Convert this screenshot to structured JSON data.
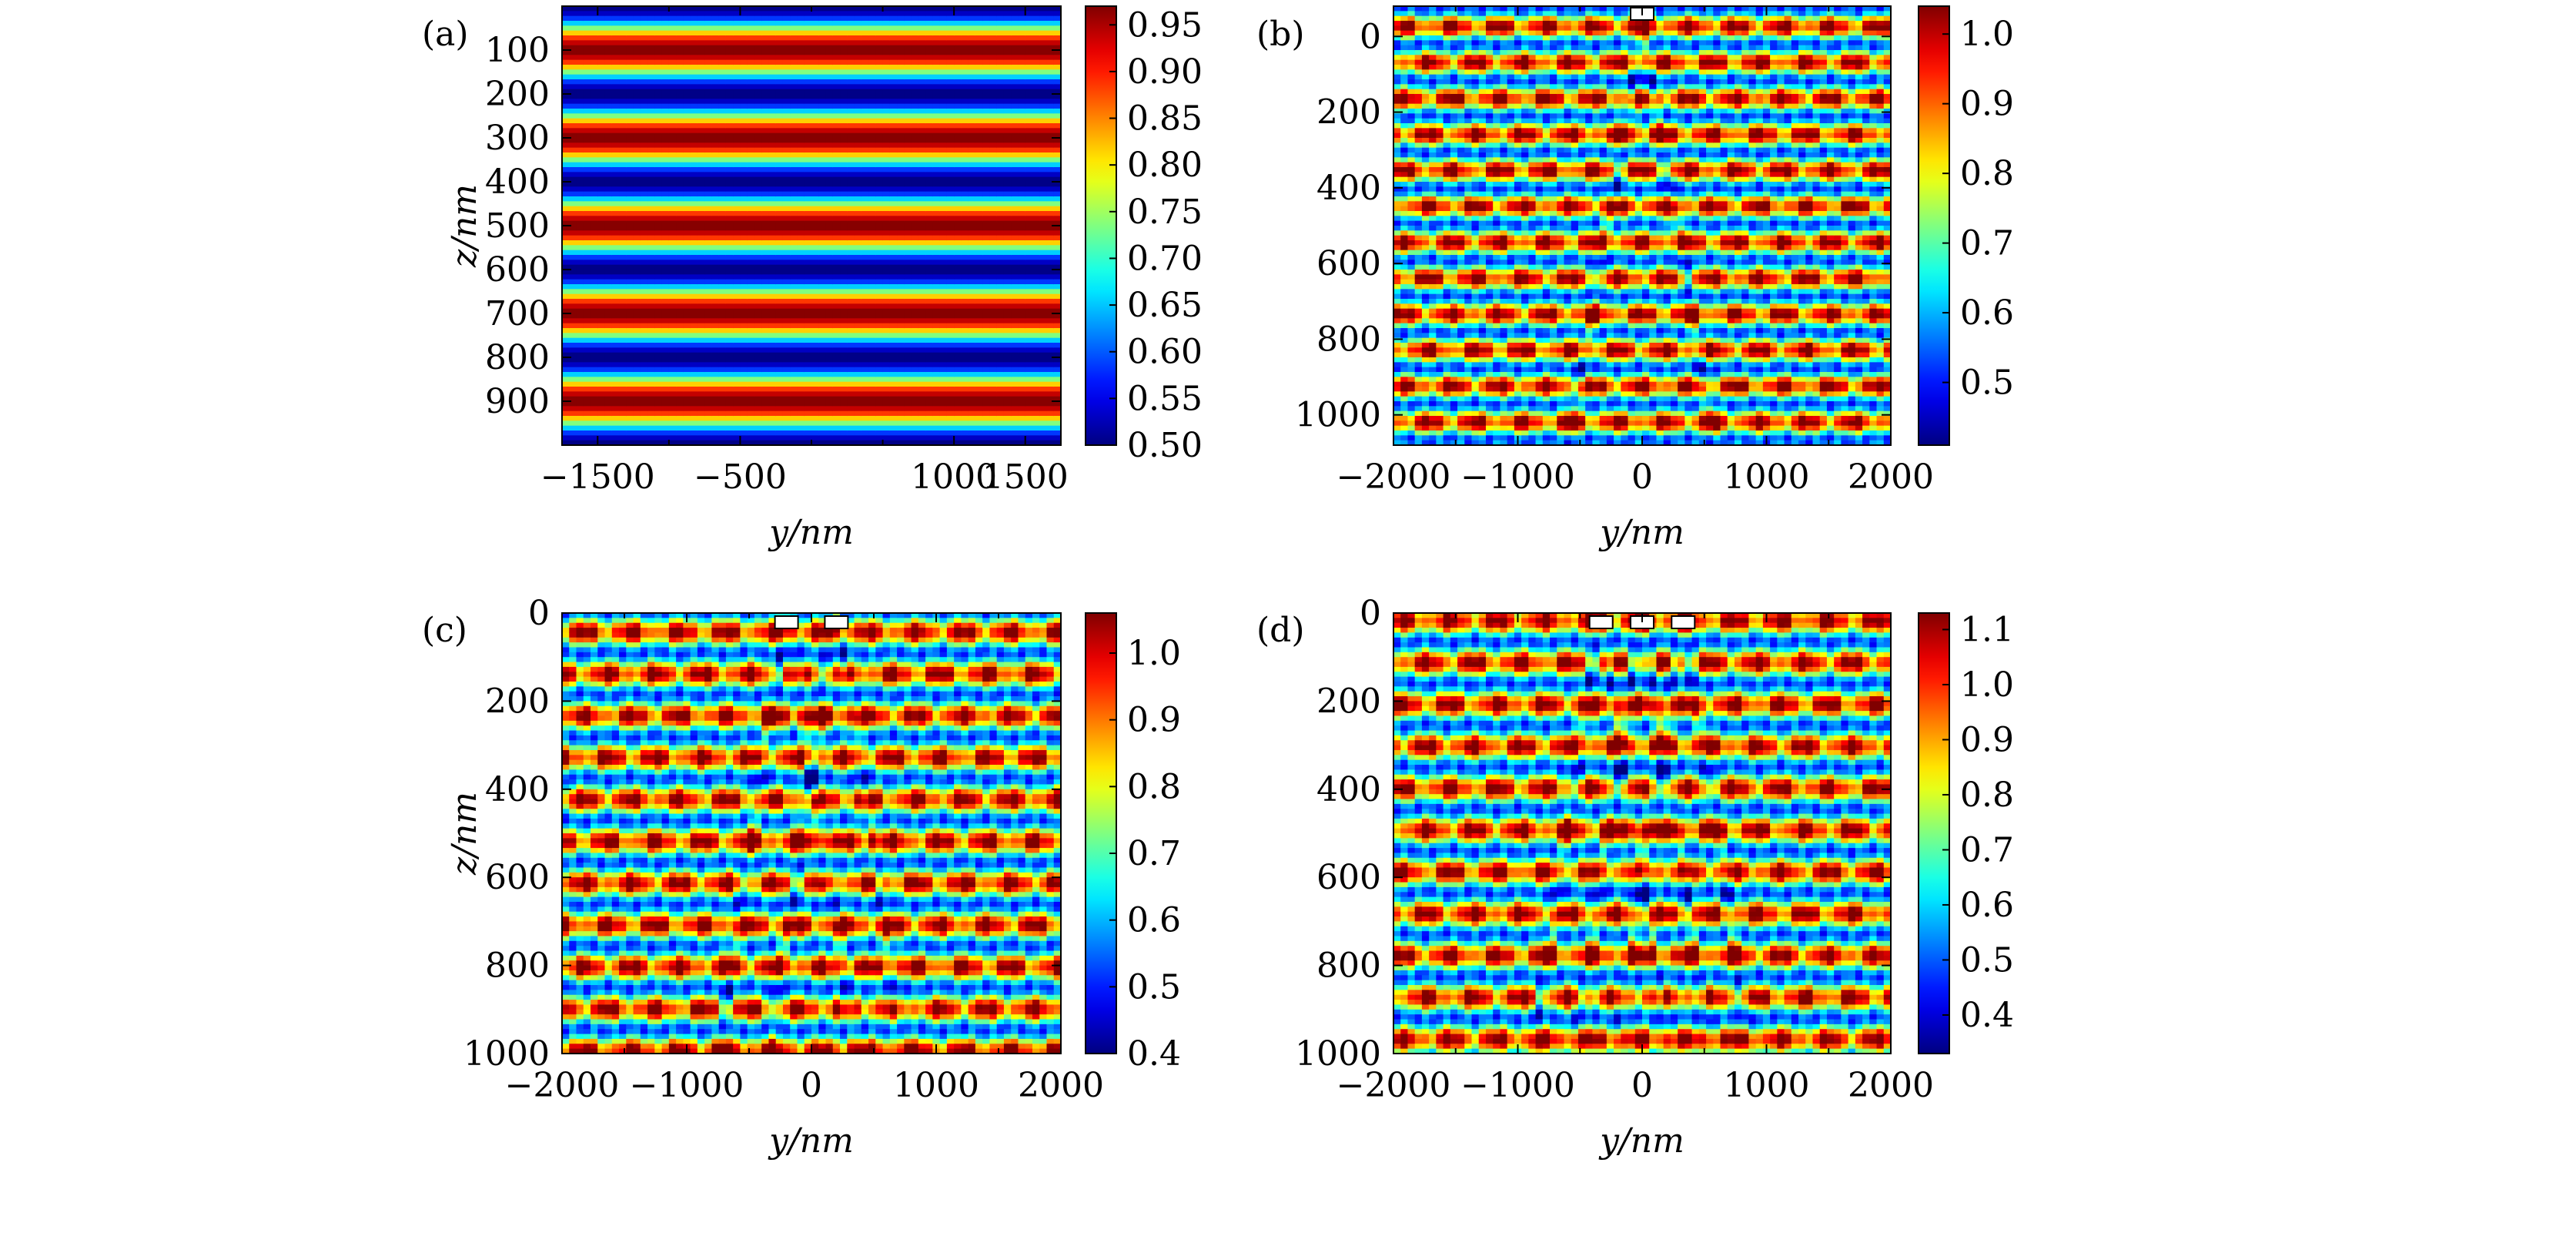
{
  "colors": {
    "colormap": "jet",
    "stops": [
      "#00007f",
      "#0000ff",
      "#007fff",
      "#00ffff",
      "#7fff7f",
      "#ffff00",
      "#ff7f00",
      "#ff0000",
      "#7f0000"
    ],
    "box_fill": "#ffffff",
    "box_stroke": "#000000"
  },
  "chart_data": [
    {
      "type": "heatmap",
      "panel_label": "(a)",
      "xlabel": "y/nm",
      "ylabel": "z/nm",
      "xlim": [
        -1750,
        1750
      ],
      "ylim": [
        0,
        1000
      ],
      "y_axis_inverted": true,
      "x_ticks": [
        -1500,
        -500,
        1000,
        1500
      ],
      "x_tick_labels": [
        "−1500",
        "−500",
        "1000",
        "1500"
      ],
      "x_minor_ticks": [
        -1000,
        0,
        500
      ],
      "y_ticks": [
        100,
        200,
        300,
        400,
        500,
        600,
        700,
        800,
        900
      ],
      "y_tick_labels": [
        "100",
        "200",
        "300",
        "400",
        "500",
        "600",
        "700",
        "800",
        "900"
      ],
      "colorbar": {
        "range": [
          0.5,
          0.97
        ],
        "ticks": [
          0.5,
          0.55,
          0.6,
          0.65,
          0.7,
          0.75,
          0.8,
          0.85,
          0.9,
          0.95
        ],
        "tick_labels": [
          "0.50",
          "0.55",
          "0.60",
          "0.65",
          "0.70",
          "0.75",
          "0.80",
          "0.85",
          "0.90",
          "0.95"
        ]
      },
      "field": {
        "pattern": "uniform-stripes",
        "period_nm": 200,
        "max_depth_nm": [
          100,
          300,
          500,
          700,
          900
        ],
        "min_depth_nm": [
          0,
          200,
          400,
          600,
          800,
          1000
        ]
      },
      "boxes_y_nm": []
    },
    {
      "type": "heatmap",
      "panel_label": "(b)",
      "xlabel": "y/nm",
      "ylabel": "",
      "xlim": [
        -2000,
        2000
      ],
      "ylim": [
        -80,
        1080
      ],
      "y_axis_inverted": true,
      "x_ticks": [
        -2000,
        -1000,
        0,
        1000,
        2000
      ],
      "x_tick_labels": [
        "−2000",
        "−1000",
        "0",
        "1000",
        "2000"
      ],
      "x_minor_ticks": [
        -1500,
        -500,
        500,
        1500
      ],
      "y_ticks": [
        0,
        200,
        400,
        600,
        800,
        1000
      ],
      "y_tick_labels": [
        "0",
        "200",
        "400",
        "600",
        "800",
        "1000"
      ],
      "colorbar": {
        "range": [
          0.41,
          1.04
        ],
        "ticks": [
          0.5,
          0.6,
          0.7,
          0.8,
          0.9,
          1.0
        ],
        "tick_labels": [
          "0.5",
          "0.6",
          "0.7",
          "0.8",
          "0.9",
          "1.0"
        ]
      },
      "field": {
        "pattern": "modulated-stripes",
        "blue_rows_nm": [
          -50,
          300,
          600,
          700,
          1030
        ],
        "red_rows_nm": [
          130,
          250,
          650,
          980
        ]
      },
      "boxes_y_nm": [
        0
      ]
    },
    {
      "type": "heatmap",
      "panel_label": "(c)",
      "xlabel": "y/nm",
      "ylabel": "z/nm",
      "xlim": [
        -2000,
        2000
      ],
      "ylim": [
        0,
        1000
      ],
      "y_axis_inverted": true,
      "x_ticks": [
        -2000,
        -1000,
        0,
        1000,
        2000
      ],
      "x_tick_labels": [
        "−2000",
        "−1000",
        "0",
        "1000",
        "2000"
      ],
      "x_minor_ticks": [
        -1500,
        -500,
        500,
        1500
      ],
      "y_ticks": [
        0,
        200,
        400,
        600,
        800,
        1000
      ],
      "y_tick_labels": [
        "0",
        "200",
        "400",
        "600",
        "800",
        "1000"
      ],
      "colorbar": {
        "range": [
          0.4,
          1.06
        ],
        "ticks": [
          0.4,
          0.5,
          0.6,
          0.7,
          0.8,
          0.9,
          1.0
        ],
        "tick_labels": [
          "0.4",
          "0.5",
          "0.6",
          "0.7",
          "0.8",
          "0.9",
          "1.0"
        ]
      },
      "field": {
        "pattern": "modulated-stripes",
        "blue_rows_nm": [
          40,
          240,
          300,
          400,
          600,
          680,
          950
        ],
        "red_rows_nm": [
          200,
          280,
          630,
          910
        ]
      },
      "boxes_y_nm": [
        -200,
        200
      ]
    },
    {
      "type": "heatmap",
      "panel_label": "(d)",
      "xlabel": "y/nm",
      "ylabel": "",
      "xlim": [
        -2000,
        2000
      ],
      "ylim": [
        0,
        1000
      ],
      "y_axis_inverted": true,
      "x_ticks": [
        -2000,
        -1000,
        0,
        1000,
        2000
      ],
      "x_tick_labels": [
        "−2000",
        "−1000",
        "0",
        "1000",
        "2000"
      ],
      "x_minor_ticks": [
        -1500,
        -500,
        500,
        1500
      ],
      "y_ticks": [
        0,
        200,
        400,
        600,
        800,
        1000
      ],
      "y_tick_labels": [
        "0",
        "200",
        "400",
        "600",
        "800",
        "1000"
      ],
      "colorbar": {
        "range": [
          0.33,
          1.13
        ],
        "ticks": [
          0.4,
          0.5,
          0.6,
          0.7,
          0.8,
          0.9,
          1.0,
          1.1
        ],
        "tick_labels": [
          "0.4",
          "0.5",
          "0.6",
          "0.7",
          "0.8",
          "0.9",
          "1.0",
          "1.1"
        ]
      },
      "field": {
        "pattern": "modulated-stripes",
        "blue_rows_nm": [
          40,
          240,
          320,
          400,
          600,
          680,
          960
        ],
        "red_rows_nm": [
          200,
          280,
          640,
          920
        ]
      },
      "boxes_y_nm": [
        -330,
        0,
        330
      ]
    }
  ]
}
